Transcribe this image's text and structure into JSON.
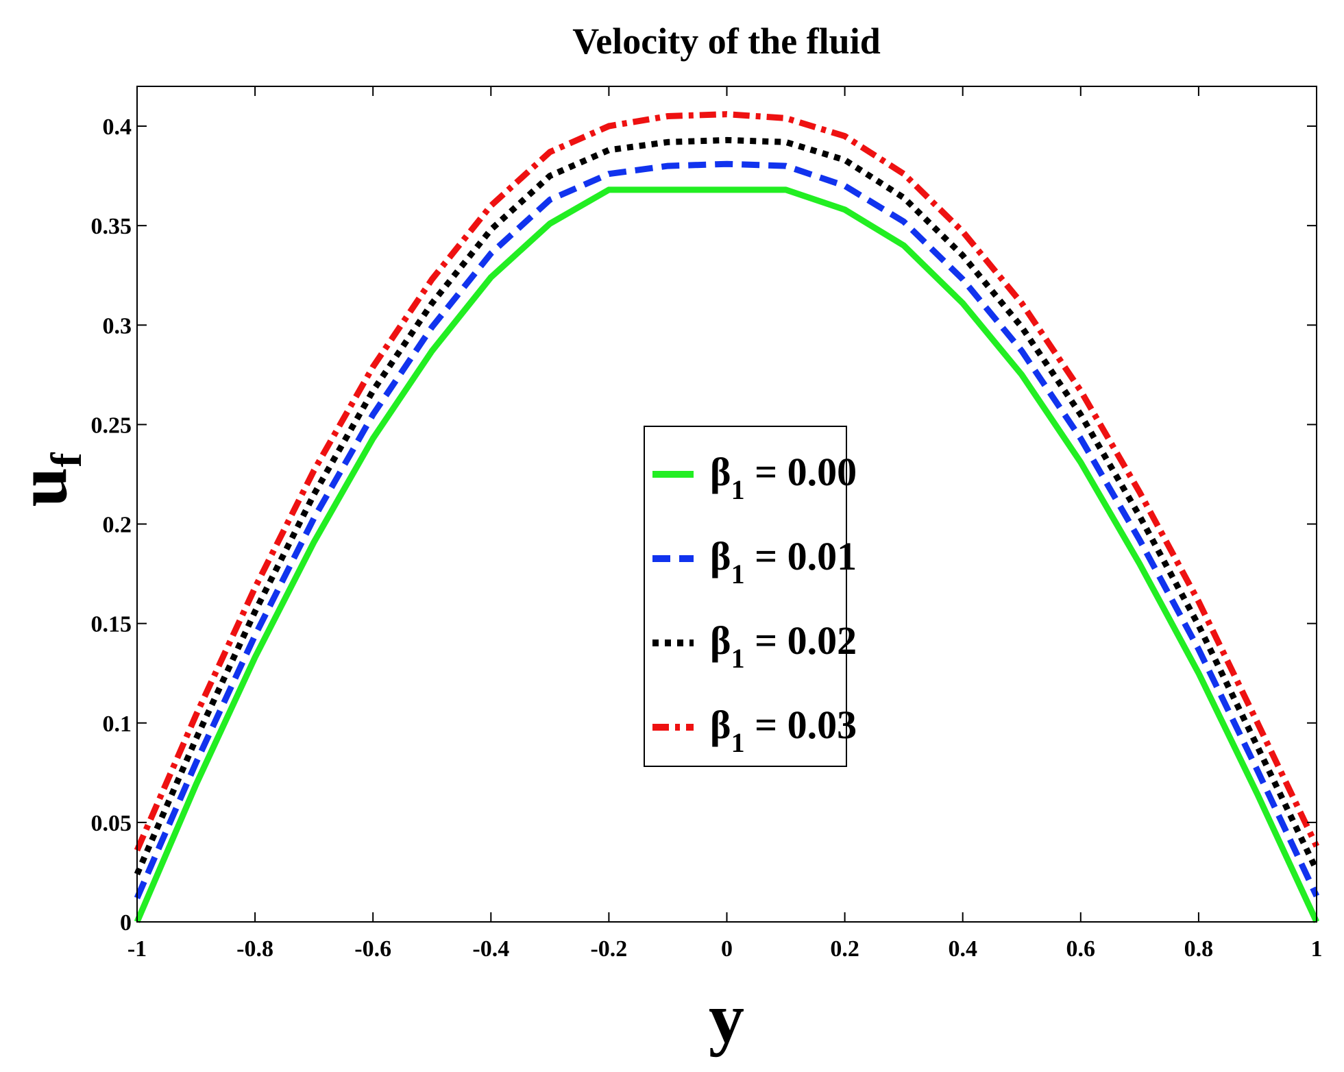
{
  "chart_data": {
    "type": "line",
    "title": "Velocity of the fluid",
    "xlabel": "y",
    "ylabel": "u",
    "ylabel_subscript": "f",
    "xlim": [
      -1,
      1
    ],
    "ylim": [
      0,
      0.42
    ],
    "xticks": [
      -1,
      -0.8,
      -0.6,
      -0.4,
      -0.2,
      0,
      0.2,
      0.4,
      0.6,
      0.8,
      1
    ],
    "xtick_labels": [
      "-1",
      "-0.8",
      "-0.6",
      "-0.4",
      "-0.2",
      "0",
      "0.2",
      "0.4",
      "0.6",
      "0.8",
      "1"
    ],
    "yticks": [
      0,
      0.05,
      0.1,
      0.15,
      0.2,
      0.25,
      0.3,
      0.35,
      0.4
    ],
    "ytick_labels": [
      "0",
      "0.05",
      "0.1",
      "0.15",
      "0.2",
      "0.25",
      "0.3",
      "0.35",
      "0.4"
    ],
    "grid": false,
    "legend_position": "center",
    "x": [
      -1,
      -0.9,
      -0.8,
      -0.7,
      -0.6,
      -0.5,
      -0.4,
      -0.3,
      -0.2,
      -0.1,
      0,
      0.1,
      0.2,
      0.3,
      0.4,
      0.5,
      0.6,
      0.7,
      0.8,
      0.9,
      1
    ],
    "series": [
      {
        "name": "β1 = 0.00",
        "legend_symbol": "β",
        "legend_subscript": "1",
        "legend_value": " = 0.00",
        "color": "#22ee22",
        "style": "solid",
        "values": [
          0.0,
          0.069,
          0.133,
          0.191,
          0.243,
          0.287,
          0.324,
          0.351,
          0.368,
          0.368,
          0.368,
          0.368,
          0.358,
          0.34,
          0.311,
          0.275,
          0.231,
          0.18,
          0.125,
          0.064,
          0.0
        ]
      },
      {
        "name": "β1 = 0.01",
        "legend_symbol": "β",
        "legend_subscript": "1",
        "legend_value": " = 0.01",
        "color": "#1133ee",
        "style": "dashed",
        "values": [
          0.012,
          0.08,
          0.144,
          0.203,
          0.255,
          0.299,
          0.336,
          0.363,
          0.376,
          0.38,
          0.381,
          0.38,
          0.37,
          0.352,
          0.323,
          0.287,
          0.243,
          0.192,
          0.137,
          0.076,
          0.013
        ]
      },
      {
        "name": "β1 = 0.02",
        "legend_symbol": "β",
        "legend_subscript": "1",
        "legend_value": " = 0.02",
        "color": "#000000",
        "style": "dotted",
        "values": [
          0.024,
          0.092,
          0.156,
          0.215,
          0.267,
          0.311,
          0.348,
          0.375,
          0.388,
          0.392,
          0.393,
          0.392,
          0.383,
          0.364,
          0.335,
          0.299,
          0.255,
          0.204,
          0.149,
          0.088,
          0.026
        ]
      },
      {
        "name": "β1 = 0.03",
        "legend_symbol": "β",
        "legend_subscript": "1",
        "legend_value": " = 0.03",
        "color": "#ee1111",
        "style": "dashdot",
        "values": [
          0.036,
          0.104,
          0.168,
          0.227,
          0.279,
          0.323,
          0.36,
          0.387,
          0.4,
          0.405,
          0.406,
          0.404,
          0.395,
          0.376,
          0.347,
          0.311,
          0.267,
          0.216,
          0.161,
          0.1,
          0.038
        ]
      }
    ]
  }
}
